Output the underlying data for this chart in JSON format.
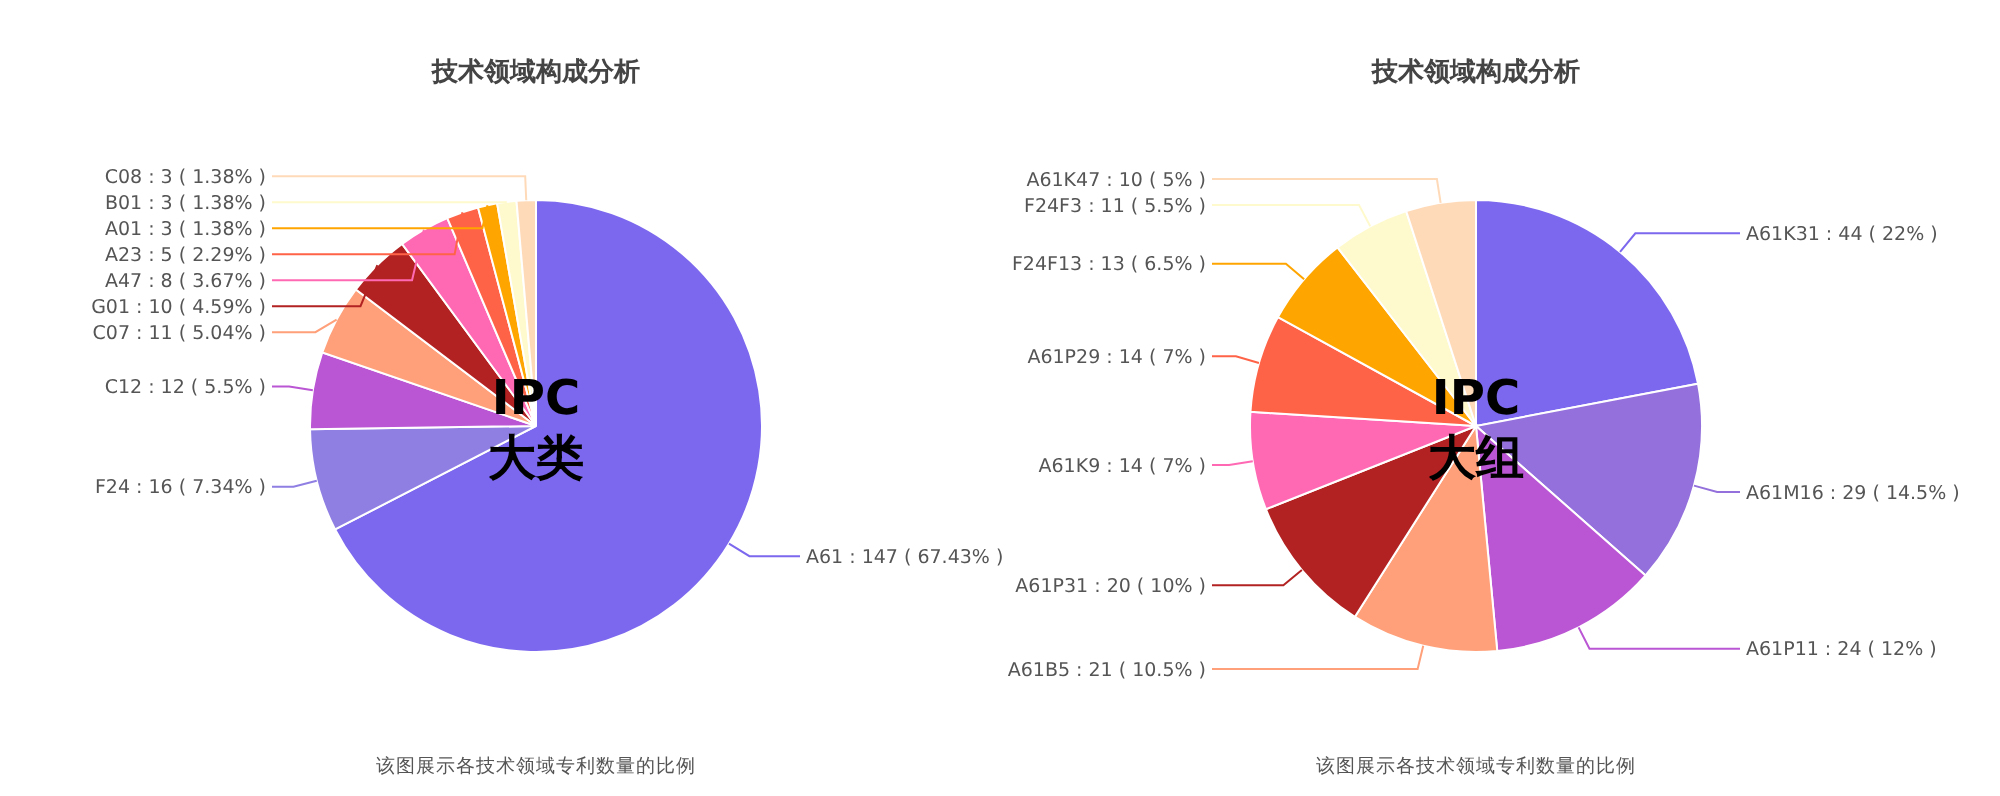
{
  "chart_data": [
    {
      "type": "pie",
      "title": "技术领域构成分析",
      "categories": [
        "A61",
        "F24",
        "C12",
        "C07",
        "G01",
        "A47",
        "A23",
        "A01",
        "B01",
        "C08"
      ],
      "values": [
        147,
        16,
        12,
        11,
        10,
        8,
        5,
        3,
        3,
        3
      ],
      "value_labels": [
        "147 ( 67.43% )",
        "16 ( 7.34% )",
        "12 ( 5.5% )",
        "11 ( 5.04% )",
        "10 ( 4.59% )",
        "8 ( 3.67% )",
        "5 ( 2.29% )",
        "3 ( 1.38% )",
        "3 ( 1.38% )",
        "3 ( 1.38% )"
      ],
      "colors": [
        "#7b68ee",
        "#8f7fe3",
        "#ba55d3",
        "#ffa07a",
        "#b22222",
        "#ff69b4",
        "#ff6347",
        "#ffa500",
        "#fffacd",
        "#ffdab9"
      ],
      "annotations": [
        "IPC\n大类",
        "该图展示各技术领域专利数量的比例"
      ]
    },
    {
      "type": "pie",
      "title": "技术领域构成分析",
      "categories": [
        "A61K31",
        "A61M16",
        "A61P11",
        "A61B5",
        "A61P31",
        "A61K9",
        "A61P29",
        "F24F13",
        "F24F3",
        "A61K47"
      ],
      "values": [
        44,
        29,
        24,
        21,
        20,
        14,
        14,
        13,
        11,
        10
      ],
      "value_labels": [
        "44 ( 22% )",
        "29 ( 14.5% )",
        "24 ( 12% )",
        "21 ( 10.5% )",
        "20 ( 10% )",
        "14 ( 7% )",
        "14 ( 7% )",
        "13 ( 6.5% )",
        "11 ( 5.5% )",
        "10 ( 5% )"
      ],
      "colors": [
        "#7b68ee",
        "#9370db",
        "#ba55d3",
        "#ffa07a",
        "#b22222",
        "#ff69b4",
        "#ff6347",
        "#ffa500",
        "#fffacd",
        "#ffdab9"
      ],
      "annotations": [
        "IPC\n大组",
        "该图展示各技术领域专利数量的比例"
      ]
    }
  ]
}
